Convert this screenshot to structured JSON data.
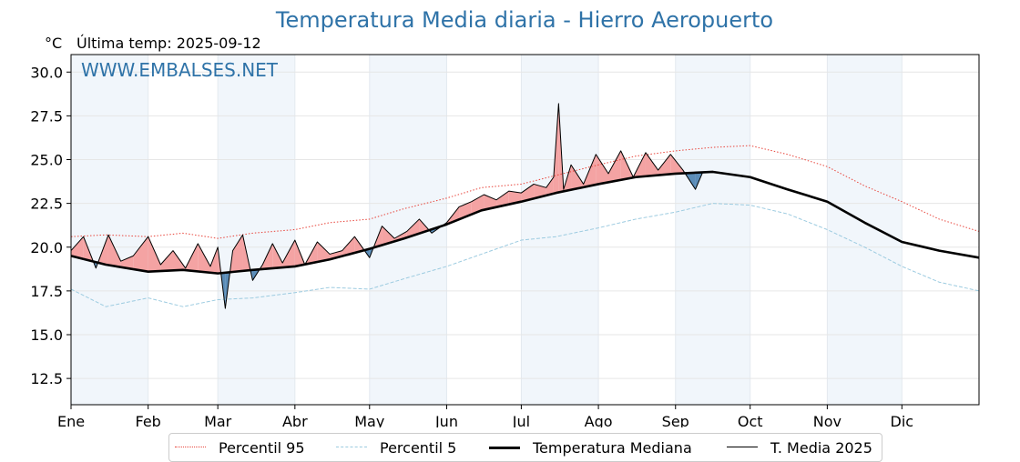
{
  "header": {
    "title": "Temperatura Media diaria - Hierro Aeropuerto",
    "unit": "°C",
    "last_temp": "Última temp: 2025-09-12"
  },
  "watermark": "WWW.EMBALSES.NET",
  "legend": {
    "p95": "Percentil 95",
    "p5": "Percentil 5",
    "median": "Temperatura Mediana",
    "media2025": "T. Media 2025"
  },
  "colors": {
    "title": "#2f73a8",
    "p95": "#e8453c",
    "p5": "#9ccbe0",
    "median": "#000000",
    "media2025": "#000000",
    "above_fill": "#f4a3a3",
    "below_fill": "#5b8db8",
    "month_band": "#f1f6fb"
  },
  "chart_data": {
    "type": "line",
    "title": "Temperatura Media diaria - Hierro Aeropuerto",
    "ylabel": "°C",
    "ylim": [
      11,
      31
    ],
    "xlim": [
      1,
      366
    ],
    "yticks": [
      12.5,
      15.0,
      17.5,
      20.0,
      22.5,
      25.0,
      27.5,
      30.0
    ],
    "month_labels": [
      "Ene",
      "Feb",
      "Mar",
      "Abr",
      "May",
      "Jun",
      "Jul",
      "Ago",
      "Sep",
      "Oct",
      "Nov",
      "Dic"
    ],
    "month_start_days": [
      1,
      32,
      60,
      91,
      121,
      152,
      182,
      213,
      244,
      274,
      305,
      335
    ],
    "grid": true,
    "legend_position": "bottom-center",
    "series": [
      {
        "name": "Percentil 95",
        "style": "dotted-red",
        "x": [
          1,
          15,
          32,
          46,
          60,
          74,
          91,
          105,
          121,
          135,
          152,
          166,
          182,
          196,
          213,
          228,
          244,
          259,
          274,
          289,
          305,
          320,
          335,
          350,
          366
        ],
        "values": [
          20.6,
          20.7,
          20.6,
          20.8,
          20.5,
          20.8,
          21.0,
          21.4,
          21.6,
          22.2,
          22.8,
          23.4,
          23.6,
          24.1,
          24.7,
          25.2,
          25.5,
          25.7,
          25.8,
          25.3,
          24.6,
          23.5,
          22.6,
          21.6,
          20.9
        ]
      },
      {
        "name": "Percentil 5",
        "style": "dashed-lightblue",
        "x": [
          1,
          15,
          32,
          46,
          60,
          74,
          91,
          105,
          121,
          135,
          152,
          166,
          182,
          196,
          213,
          228,
          244,
          259,
          274,
          289,
          305,
          320,
          335,
          350,
          366
        ],
        "values": [
          17.6,
          16.6,
          17.1,
          16.6,
          17.0,
          17.1,
          17.4,
          17.7,
          17.6,
          18.2,
          18.9,
          19.6,
          20.4,
          20.6,
          21.1,
          21.6,
          22.0,
          22.5,
          22.4,
          21.9,
          21.0,
          20.0,
          18.9,
          18.0,
          17.5
        ]
      },
      {
        "name": "Temperatura Mediana",
        "style": "solid-black-thick",
        "x": [
          1,
          15,
          32,
          46,
          60,
          74,
          91,
          105,
          121,
          135,
          152,
          166,
          182,
          196,
          213,
          228,
          244,
          259,
          274,
          289,
          305,
          320,
          335,
          350,
          366
        ],
        "values": [
          19.5,
          19.0,
          18.6,
          18.7,
          18.5,
          18.7,
          18.9,
          19.3,
          19.9,
          20.5,
          21.3,
          22.1,
          22.6,
          23.1,
          23.6,
          24.0,
          24.2,
          24.3,
          24.0,
          23.3,
          22.6,
          21.4,
          20.3,
          19.8,
          19.4
        ]
      },
      {
        "name": "T. Media 2025",
        "style": "solid-black-thin",
        "x": [
          1,
          6,
          11,
          16,
          21,
          26,
          32,
          37,
          42,
          47,
          52,
          57,
          60,
          63,
          66,
          70,
          74,
          78,
          82,
          86,
          91,
          95,
          100,
          105,
          110,
          115,
          121,
          126,
          131,
          136,
          141,
          146,
          152,
          157,
          162,
          167,
          172,
          177,
          182,
          187,
          192,
          195,
          197,
          199,
          202,
          207,
          212,
          217,
          222,
          227,
          232,
          237,
          242,
          247,
          252,
          255
        ],
        "values": [
          19.8,
          20.6,
          18.8,
          20.7,
          19.2,
          19.5,
          20.6,
          19.0,
          19.8,
          18.8,
          20.2,
          18.9,
          20.0,
          16.5,
          19.8,
          20.7,
          18.1,
          19.0,
          20.2,
          19.1,
          20.4,
          19.0,
          20.3,
          19.6,
          19.8,
          20.6,
          19.4,
          21.2,
          20.5,
          20.9,
          21.6,
          20.8,
          21.4,
          22.3,
          22.6,
          23.0,
          22.7,
          23.2,
          23.1,
          23.6,
          23.4,
          24.0,
          28.2,
          23.3,
          24.7,
          23.6,
          25.3,
          24.2,
          25.5,
          24.0,
          25.4,
          24.4,
          25.3,
          24.4,
          23.3,
          24.3
        ]
      }
    ]
  }
}
